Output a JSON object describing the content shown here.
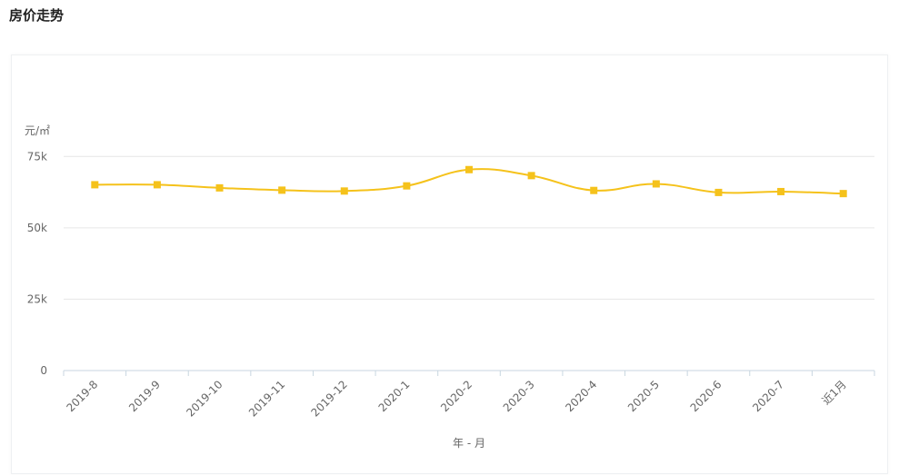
{
  "page": {
    "title": "房价走势"
  },
  "chart_data": {
    "type": "line",
    "title": "",
    "ylabel": "元/㎡",
    "xlabel": "年 - 月",
    "categories": [
      "2019-8",
      "2019-9",
      "2019-10",
      "2019-11",
      "2019-12",
      "2020-1",
      "2020-2",
      "2020-3",
      "2020-4",
      "2020-5",
      "2020-6",
      "2020-7",
      "近1月"
    ],
    "values": [
      65100,
      65100,
      64000,
      63200,
      62900,
      64700,
      70400,
      68300,
      63100,
      65400,
      62400,
      62700,
      62000
    ],
    "ylim": [
      0,
      75000
    ],
    "yticks": [
      0,
      25000,
      50000,
      75000
    ],
    "ytick_labels": [
      "0",
      "25k",
      "50k",
      "75k"
    ],
    "grid": true,
    "smooth": true,
    "color": "#f5c21b"
  }
}
